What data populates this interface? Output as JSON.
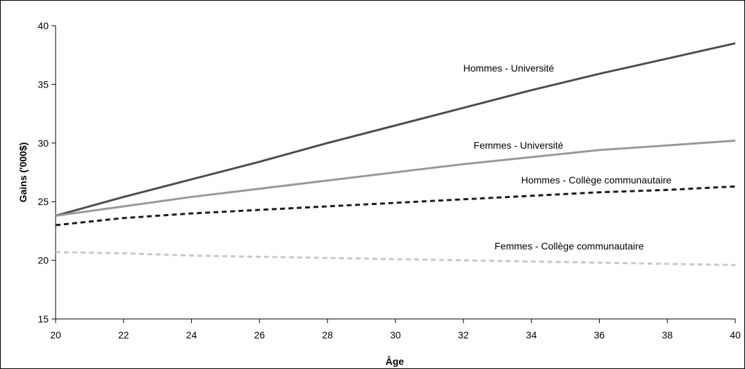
{
  "chart_data": {
    "type": "line",
    "xlabel": "Âge",
    "ylabel": "Gains ('000$)",
    "xlim": [
      20,
      40
    ],
    "ylim": [
      15,
      40
    ],
    "xticks": [
      20,
      22,
      24,
      26,
      28,
      30,
      32,
      34,
      36,
      38,
      40
    ],
    "yticks": [
      15,
      20,
      25,
      30,
      35,
      40
    ],
    "grid": false,
    "legend": "none (direct labels on series)",
    "x": [
      20,
      22,
      24,
      26,
      28,
      30,
      32,
      34,
      36,
      38,
      40
    ],
    "series": [
      {
        "name": "Hommes - Université",
        "color": "#4d4d4d",
        "style": "solid",
        "values": [
          23.8,
          25.4,
          26.9,
          28.4,
          30.0,
          31.5,
          33.0,
          34.5,
          35.9,
          37.2,
          38.5
        ]
      },
      {
        "name": "Femmes - Université",
        "color": "#999999",
        "style": "solid",
        "values": [
          23.8,
          24.6,
          25.4,
          26.1,
          26.8,
          27.5,
          28.2,
          28.8,
          29.4,
          29.8,
          30.2
        ]
      },
      {
        "name": "Hommes - Collège communautaire",
        "color": "#1a1a1a",
        "style": "dashed",
        "values": [
          23.0,
          23.6,
          24.0,
          24.3,
          24.6,
          24.9,
          25.2,
          25.5,
          25.8,
          26.0,
          26.3
        ]
      },
      {
        "name": "Femmes - Collège communautaire",
        "color": "#c8c8c8",
        "style": "dashed",
        "values": [
          20.7,
          20.6,
          20.4,
          20.3,
          20.2,
          20.1,
          20.0,
          19.9,
          19.8,
          19.7,
          19.6
        ]
      }
    ]
  }
}
